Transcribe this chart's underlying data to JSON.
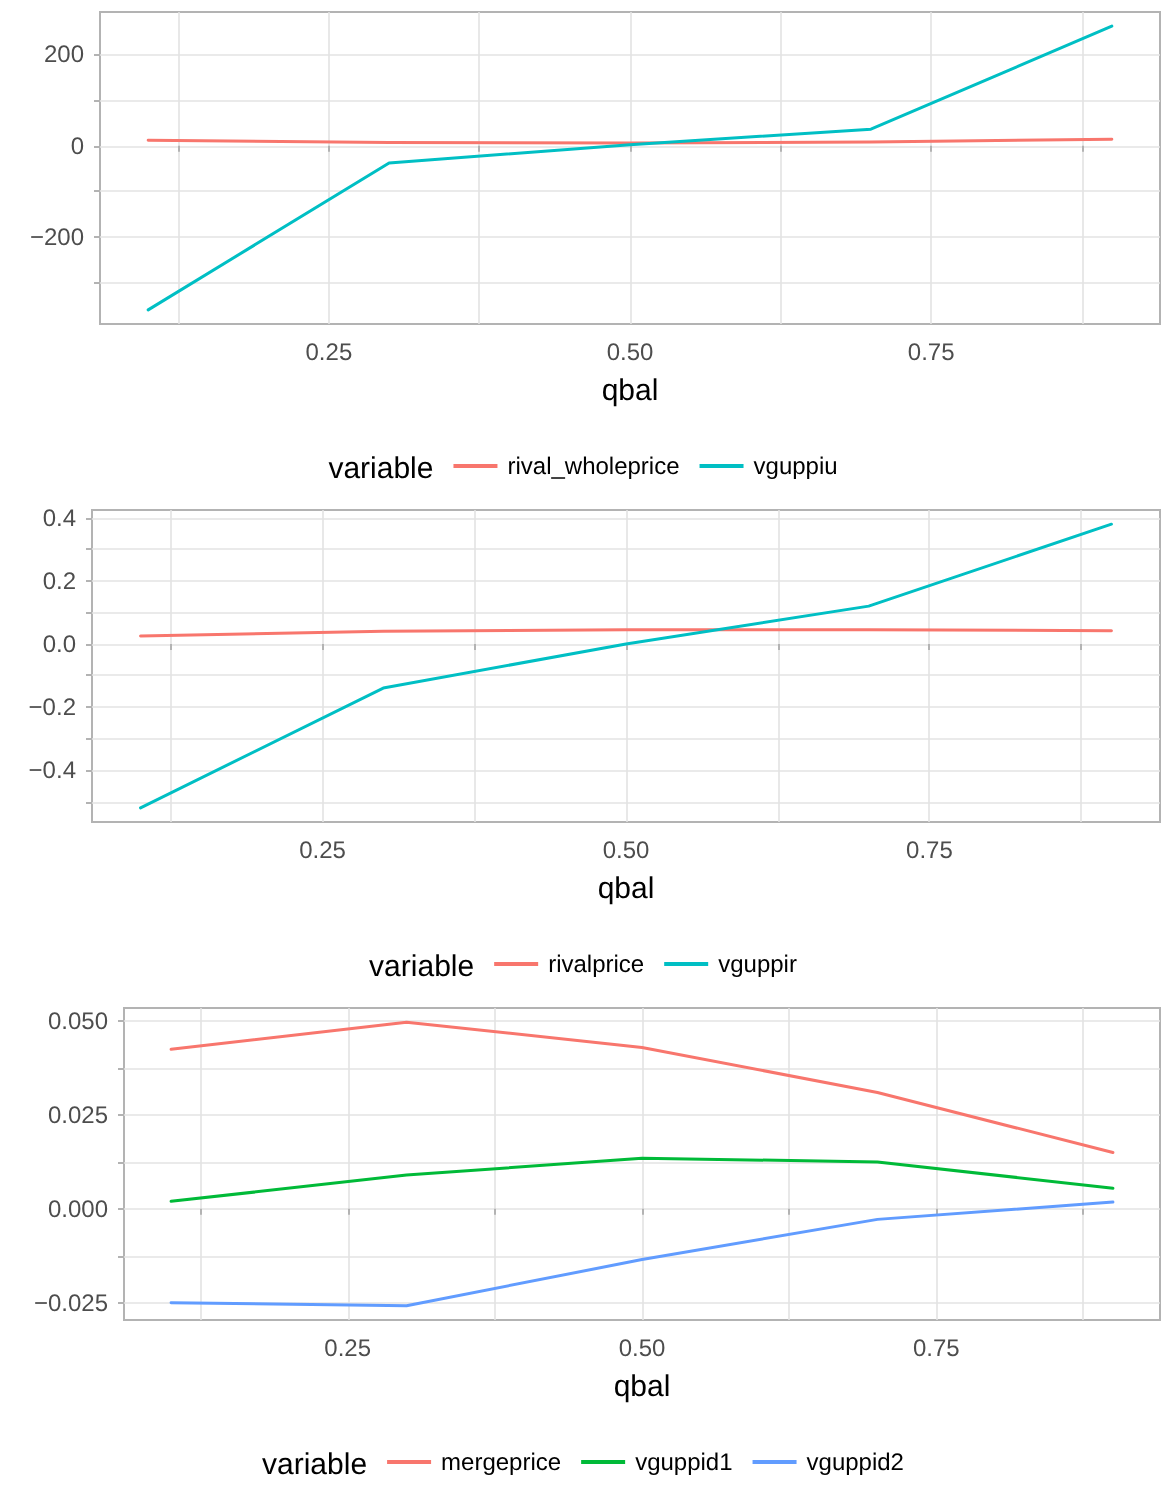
{
  "chart_data": [
    {
      "type": "line",
      "xlabel": "qbal",
      "legend_title": "variable",
      "legend": "bottom",
      "grid": true,
      "x": [
        0.1,
        0.3,
        0.5,
        0.7,
        0.9
      ],
      "xlim": [
        0.06,
        0.94
      ],
      "xticks": [
        {
          "value": 0.125,
          "label": null
        },
        {
          "value": 0.25,
          "label": "0.25"
        },
        {
          "value": 0.375,
          "label": null
        },
        {
          "value": 0.5,
          "label": "0.50"
        },
        {
          "value": 0.625,
          "label": null
        },
        {
          "value": 0.75,
          "label": "0.75"
        },
        {
          "value": 0.875,
          "label": null
        }
      ],
      "ylim": [
        -391,
        293
      ],
      "yticks": [
        {
          "value": -300,
          "label": null
        },
        {
          "value": -200,
          "label": "−200"
        },
        {
          "value": -100,
          "label": null
        },
        {
          "value": 0,
          "label": "0"
        },
        {
          "value": 100,
          "label": null
        },
        {
          "value": 200,
          "label": "200"
        }
      ],
      "series": [
        {
          "name": "rival_wholeprice",
          "color": "#f8766d",
          "values": [
            12,
            7,
            6,
            8,
            14
          ]
        },
        {
          "name": "vguppiu",
          "color": "#00bfc4",
          "values": [
            -360,
            -38,
            2,
            36,
            262
          ]
        }
      ]
    },
    {
      "type": "line",
      "xlabel": "qbal",
      "legend_title": "variable",
      "legend": "bottom",
      "grid": true,
      "x": [
        0.1,
        0.3,
        0.5,
        0.7,
        0.9
      ],
      "xlim": [
        0.06,
        0.94
      ],
      "xticks": [
        {
          "value": 0.125,
          "label": null
        },
        {
          "value": 0.25,
          "label": "0.25"
        },
        {
          "value": 0.375,
          "label": null
        },
        {
          "value": 0.5,
          "label": "0.50"
        },
        {
          "value": 0.625,
          "label": null
        },
        {
          "value": 0.75,
          "label": "0.75"
        },
        {
          "value": 0.875,
          "label": null
        }
      ],
      "ylim": [
        -0.565,
        0.425
      ],
      "yticks": [
        {
          "value": -0.5,
          "label": null
        },
        {
          "value": -0.4,
          "label": "−0.4"
        },
        {
          "value": -0.3,
          "label": null
        },
        {
          "value": -0.2,
          "label": "−0.2"
        },
        {
          "value": -0.1,
          "label": null
        },
        {
          "value": 0,
          "label": "0.0"
        },
        {
          "value": 0.1,
          "label": null
        },
        {
          "value": 0.2,
          "label": "0.2"
        },
        {
          "value": 0.3,
          "label": null
        },
        {
          "value": 0.4,
          "label": "0.4"
        }
      ],
      "series": [
        {
          "name": "rivalprice",
          "color": "#f8766d",
          "values": [
            0.025,
            0.04,
            0.045,
            0.045,
            0.042
          ]
        },
        {
          "name": "vguppir",
          "color": "#00bfc4",
          "values": [
            -0.52,
            -0.14,
            0.0,
            0.12,
            0.38
          ]
        }
      ]
    },
    {
      "type": "line",
      "xlabel": "qbal",
      "legend_title": "variable",
      "legend": "bottom",
      "grid": true,
      "x": [
        0.1,
        0.3,
        0.5,
        0.7,
        0.9
      ],
      "xlim": [
        0.06,
        0.94
      ],
      "xticks": [
        {
          "value": 0.125,
          "label": null
        },
        {
          "value": 0.25,
          "label": "0.25"
        },
        {
          "value": 0.375,
          "label": null
        },
        {
          "value": 0.5,
          "label": "0.50"
        },
        {
          "value": 0.625,
          "label": null
        },
        {
          "value": 0.75,
          "label": "0.75"
        },
        {
          "value": 0.875,
          "label": null
        }
      ],
      "ylim": [
        -0.0296,
        0.0535
      ],
      "yticks": [
        {
          "value": -0.025,
          "label": "−0.025"
        },
        {
          "value": -0.0125,
          "label": null
        },
        {
          "value": 0,
          "label": "0.000"
        },
        {
          "value": 0.0125,
          "label": null
        },
        {
          "value": 0.025,
          "label": "0.025"
        },
        {
          "value": 0.0375,
          "label": null
        },
        {
          "value": 0.05,
          "label": "0.050"
        }
      ],
      "series": [
        {
          "name": "mergeprice",
          "color": "#f8766d",
          "values": [
            0.0425,
            0.0497,
            0.043,
            0.031,
            0.015
          ]
        },
        {
          "name": "vguppid1",
          "color": "#00ba38",
          "values": [
            0.002,
            0.009,
            0.0135,
            0.0125,
            0.0055
          ]
        },
        {
          "name": "vguppid2",
          "color": "#619cff",
          "values": [
            -0.025,
            -0.0258,
            -0.0135,
            -0.0028,
            0.0018
          ]
        }
      ]
    }
  ]
}
